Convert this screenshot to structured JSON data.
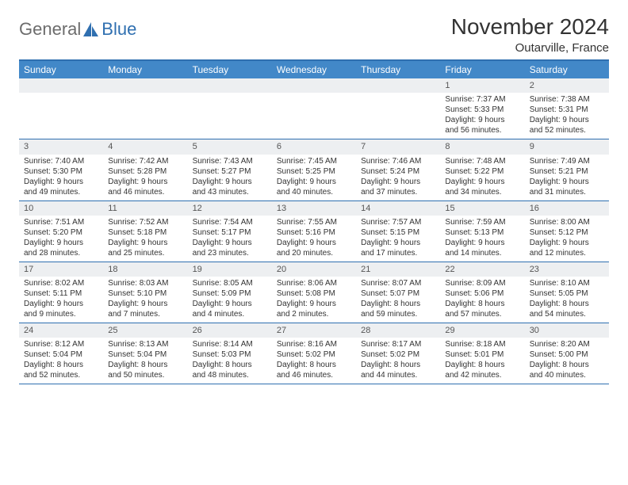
{
  "brand": {
    "part1": "General",
    "part2": "Blue"
  },
  "title": "November 2024",
  "location": "Outarville, France",
  "colors": {
    "header_bar": "#4288c8",
    "border": "#2f6fb0",
    "daynum_bg": "#edeff1",
    "text": "#333333",
    "logo_gray": "#6c6c6c"
  },
  "dow": [
    "Sunday",
    "Monday",
    "Tuesday",
    "Wednesday",
    "Thursday",
    "Friday",
    "Saturday"
  ],
  "weeks": [
    [
      null,
      null,
      null,
      null,
      null,
      {
        "n": "1",
        "sr": "7:37 AM",
        "ss": "5:33 PM",
        "dl": "9 hours and 56 minutes."
      },
      {
        "n": "2",
        "sr": "7:38 AM",
        "ss": "5:31 PM",
        "dl": "9 hours and 52 minutes."
      }
    ],
    [
      {
        "n": "3",
        "sr": "7:40 AM",
        "ss": "5:30 PM",
        "dl": "9 hours and 49 minutes."
      },
      {
        "n": "4",
        "sr": "7:42 AM",
        "ss": "5:28 PM",
        "dl": "9 hours and 46 minutes."
      },
      {
        "n": "5",
        "sr": "7:43 AM",
        "ss": "5:27 PM",
        "dl": "9 hours and 43 minutes."
      },
      {
        "n": "6",
        "sr": "7:45 AM",
        "ss": "5:25 PM",
        "dl": "9 hours and 40 minutes."
      },
      {
        "n": "7",
        "sr": "7:46 AM",
        "ss": "5:24 PM",
        "dl": "9 hours and 37 minutes."
      },
      {
        "n": "8",
        "sr": "7:48 AM",
        "ss": "5:22 PM",
        "dl": "9 hours and 34 minutes."
      },
      {
        "n": "9",
        "sr": "7:49 AM",
        "ss": "5:21 PM",
        "dl": "9 hours and 31 minutes."
      }
    ],
    [
      {
        "n": "10",
        "sr": "7:51 AM",
        "ss": "5:20 PM",
        "dl": "9 hours and 28 minutes."
      },
      {
        "n": "11",
        "sr": "7:52 AM",
        "ss": "5:18 PM",
        "dl": "9 hours and 25 minutes."
      },
      {
        "n": "12",
        "sr": "7:54 AM",
        "ss": "5:17 PM",
        "dl": "9 hours and 23 minutes."
      },
      {
        "n": "13",
        "sr": "7:55 AM",
        "ss": "5:16 PM",
        "dl": "9 hours and 20 minutes."
      },
      {
        "n": "14",
        "sr": "7:57 AM",
        "ss": "5:15 PM",
        "dl": "9 hours and 17 minutes."
      },
      {
        "n": "15",
        "sr": "7:59 AM",
        "ss": "5:13 PM",
        "dl": "9 hours and 14 minutes."
      },
      {
        "n": "16",
        "sr": "8:00 AM",
        "ss": "5:12 PM",
        "dl": "9 hours and 12 minutes."
      }
    ],
    [
      {
        "n": "17",
        "sr": "8:02 AM",
        "ss": "5:11 PM",
        "dl": "9 hours and 9 minutes."
      },
      {
        "n": "18",
        "sr": "8:03 AM",
        "ss": "5:10 PM",
        "dl": "9 hours and 7 minutes."
      },
      {
        "n": "19",
        "sr": "8:05 AM",
        "ss": "5:09 PM",
        "dl": "9 hours and 4 minutes."
      },
      {
        "n": "20",
        "sr": "8:06 AM",
        "ss": "5:08 PM",
        "dl": "9 hours and 2 minutes."
      },
      {
        "n": "21",
        "sr": "8:07 AM",
        "ss": "5:07 PM",
        "dl": "8 hours and 59 minutes."
      },
      {
        "n": "22",
        "sr": "8:09 AM",
        "ss": "5:06 PM",
        "dl": "8 hours and 57 minutes."
      },
      {
        "n": "23",
        "sr": "8:10 AM",
        "ss": "5:05 PM",
        "dl": "8 hours and 54 minutes."
      }
    ],
    [
      {
        "n": "24",
        "sr": "8:12 AM",
        "ss": "5:04 PM",
        "dl": "8 hours and 52 minutes."
      },
      {
        "n": "25",
        "sr": "8:13 AM",
        "ss": "5:04 PM",
        "dl": "8 hours and 50 minutes."
      },
      {
        "n": "26",
        "sr": "8:14 AM",
        "ss": "5:03 PM",
        "dl": "8 hours and 48 minutes."
      },
      {
        "n": "27",
        "sr": "8:16 AM",
        "ss": "5:02 PM",
        "dl": "8 hours and 46 minutes."
      },
      {
        "n": "28",
        "sr": "8:17 AM",
        "ss": "5:02 PM",
        "dl": "8 hours and 44 minutes."
      },
      {
        "n": "29",
        "sr": "8:18 AM",
        "ss": "5:01 PM",
        "dl": "8 hours and 42 minutes."
      },
      {
        "n": "30",
        "sr": "8:20 AM",
        "ss": "5:00 PM",
        "dl": "8 hours and 40 minutes."
      }
    ]
  ],
  "labels": {
    "sunrise": "Sunrise: ",
    "sunset": "Sunset: ",
    "daylight": "Daylight: "
  }
}
